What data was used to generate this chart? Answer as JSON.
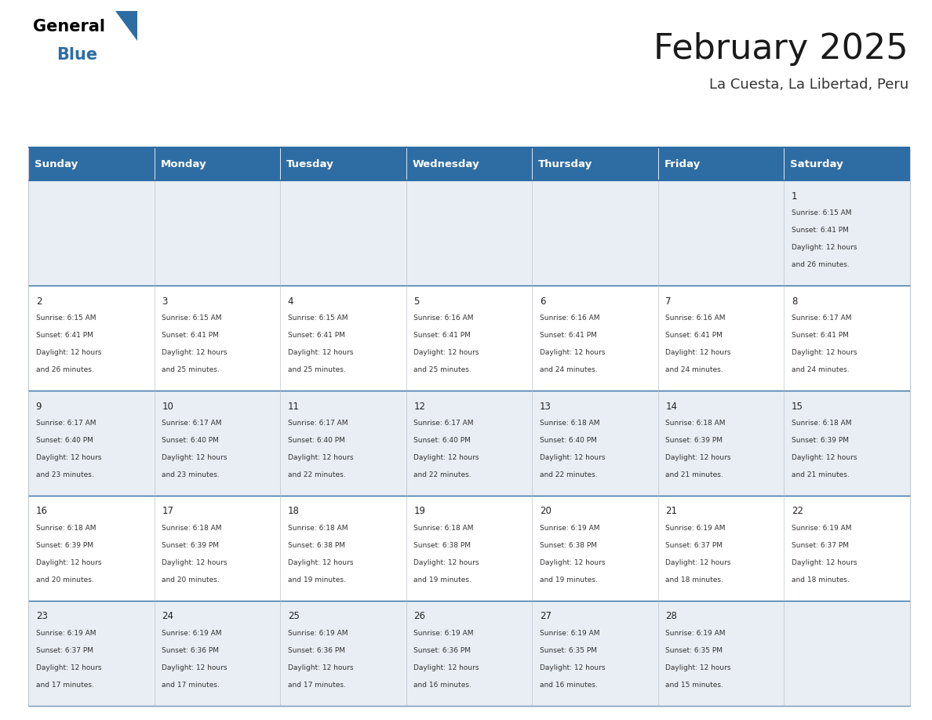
{
  "title": "February 2025",
  "subtitle": "La Cuesta, La Libertad, Peru",
  "header_color": "#2e6da4",
  "header_text_color": "#ffffff",
  "border_color": "#2e6da4",
  "day_headers": [
    "Sunday",
    "Monday",
    "Tuesday",
    "Wednesday",
    "Thursday",
    "Friday",
    "Saturday"
  ],
  "days": [
    {
      "day": 1,
      "col": 6,
      "row": 0,
      "sunrise": "6:15 AM",
      "sunset": "6:41 PM",
      "daylight": "12 hours and 26 minutes."
    },
    {
      "day": 2,
      "col": 0,
      "row": 1,
      "sunrise": "6:15 AM",
      "sunset": "6:41 PM",
      "daylight": "12 hours and 26 minutes."
    },
    {
      "day": 3,
      "col": 1,
      "row": 1,
      "sunrise": "6:15 AM",
      "sunset": "6:41 PM",
      "daylight": "12 hours and 25 minutes."
    },
    {
      "day": 4,
      "col": 2,
      "row": 1,
      "sunrise": "6:15 AM",
      "sunset": "6:41 PM",
      "daylight": "12 hours and 25 minutes."
    },
    {
      "day": 5,
      "col": 3,
      "row": 1,
      "sunrise": "6:16 AM",
      "sunset": "6:41 PM",
      "daylight": "12 hours and 25 minutes."
    },
    {
      "day": 6,
      "col": 4,
      "row": 1,
      "sunrise": "6:16 AM",
      "sunset": "6:41 PM",
      "daylight": "12 hours and 24 minutes."
    },
    {
      "day": 7,
      "col": 5,
      "row": 1,
      "sunrise": "6:16 AM",
      "sunset": "6:41 PM",
      "daylight": "12 hours and 24 minutes."
    },
    {
      "day": 8,
      "col": 6,
      "row": 1,
      "sunrise": "6:17 AM",
      "sunset": "6:41 PM",
      "daylight": "12 hours and 24 minutes."
    },
    {
      "day": 9,
      "col": 0,
      "row": 2,
      "sunrise": "6:17 AM",
      "sunset": "6:40 PM",
      "daylight": "12 hours and 23 minutes."
    },
    {
      "day": 10,
      "col": 1,
      "row": 2,
      "sunrise": "6:17 AM",
      "sunset": "6:40 PM",
      "daylight": "12 hours and 23 minutes."
    },
    {
      "day": 11,
      "col": 2,
      "row": 2,
      "sunrise": "6:17 AM",
      "sunset": "6:40 PM",
      "daylight": "12 hours and 22 minutes."
    },
    {
      "day": 12,
      "col": 3,
      "row": 2,
      "sunrise": "6:17 AM",
      "sunset": "6:40 PM",
      "daylight": "12 hours and 22 minutes."
    },
    {
      "day": 13,
      "col": 4,
      "row": 2,
      "sunrise": "6:18 AM",
      "sunset": "6:40 PM",
      "daylight": "12 hours and 22 minutes."
    },
    {
      "day": 14,
      "col": 5,
      "row": 2,
      "sunrise": "6:18 AM",
      "sunset": "6:39 PM",
      "daylight": "12 hours and 21 minutes."
    },
    {
      "day": 15,
      "col": 6,
      "row": 2,
      "sunrise": "6:18 AM",
      "sunset": "6:39 PM",
      "daylight": "12 hours and 21 minutes."
    },
    {
      "day": 16,
      "col": 0,
      "row": 3,
      "sunrise": "6:18 AM",
      "sunset": "6:39 PM",
      "daylight": "12 hours and 20 minutes."
    },
    {
      "day": 17,
      "col": 1,
      "row": 3,
      "sunrise": "6:18 AM",
      "sunset": "6:39 PM",
      "daylight": "12 hours and 20 minutes."
    },
    {
      "day": 18,
      "col": 2,
      "row": 3,
      "sunrise": "6:18 AM",
      "sunset": "6:38 PM",
      "daylight": "12 hours and 19 minutes."
    },
    {
      "day": 19,
      "col": 3,
      "row": 3,
      "sunrise": "6:18 AM",
      "sunset": "6:38 PM",
      "daylight": "12 hours and 19 minutes."
    },
    {
      "day": 20,
      "col": 4,
      "row": 3,
      "sunrise": "6:19 AM",
      "sunset": "6:38 PM",
      "daylight": "12 hours and 19 minutes."
    },
    {
      "day": 21,
      "col": 5,
      "row": 3,
      "sunrise": "6:19 AM",
      "sunset": "6:37 PM",
      "daylight": "12 hours and 18 minutes."
    },
    {
      "day": 22,
      "col": 6,
      "row": 3,
      "sunrise": "6:19 AM",
      "sunset": "6:37 PM",
      "daylight": "12 hours and 18 minutes."
    },
    {
      "day": 23,
      "col": 0,
      "row": 4,
      "sunrise": "6:19 AM",
      "sunset": "6:37 PM",
      "daylight": "12 hours and 17 minutes."
    },
    {
      "day": 24,
      "col": 1,
      "row": 4,
      "sunrise": "6:19 AM",
      "sunset": "6:36 PM",
      "daylight": "12 hours and 17 minutes."
    },
    {
      "day": 25,
      "col": 2,
      "row": 4,
      "sunrise": "6:19 AM",
      "sunset": "6:36 PM",
      "daylight": "12 hours and 17 minutes."
    },
    {
      "day": 26,
      "col": 3,
      "row": 4,
      "sunrise": "6:19 AM",
      "sunset": "6:36 PM",
      "daylight": "12 hours and 16 minutes."
    },
    {
      "day": 27,
      "col": 4,
      "row": 4,
      "sunrise": "6:19 AM",
      "sunset": "6:35 PM",
      "daylight": "12 hours and 16 minutes."
    },
    {
      "day": 28,
      "col": 5,
      "row": 4,
      "sunrise": "6:19 AM",
      "sunset": "6:35 PM",
      "daylight": "12 hours and 15 minutes."
    }
  ],
  "num_rows": 5,
  "num_cols": 7,
  "logo_triangle_color": "#2e6da4",
  "fig_width": 11.88,
  "fig_height": 9.18,
  "dpi": 100
}
